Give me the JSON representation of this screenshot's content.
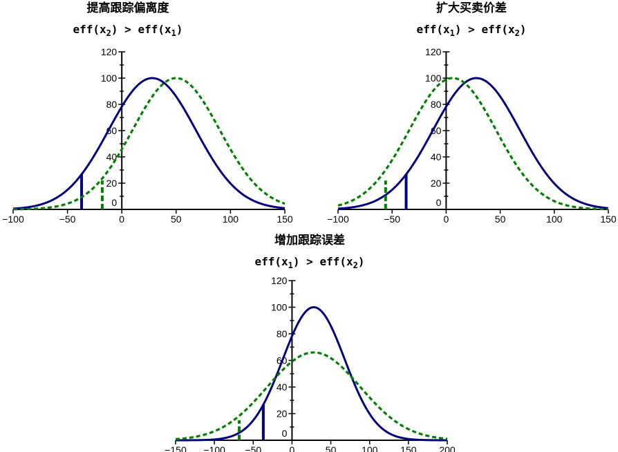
{
  "chart_data": [
    {
      "type": "line",
      "title": "提高跟踪偏离度",
      "subtitle": {
        "left": "eff(x",
        "left_sub": "2",
        "right": "eff(x",
        "right_sub": "1"
      },
      "xlim": [
        -100,
        150
      ],
      "ylim": [
        0,
        120
      ],
      "xticks": [
        -100,
        -50,
        0,
        50,
        100,
        150
      ],
      "xtick_labels": [
        "−100",
        "−50",
        "0",
        "50",
        "100",
        "150"
      ],
      "yticks": [
        0,
        20,
        40,
        60,
        80,
        100,
        120
      ],
      "ytick_labels": [
        "0",
        "20",
        "40",
        "60",
        "80",
        "100",
        "120"
      ],
      "series": [
        {
          "style": "solid",
          "color": "#000080",
          "curve": {
            "peak": 100,
            "mean": 28,
            "sd": 40
          },
          "marker_x": -37,
          "marker_y": 27
        },
        {
          "style": "dashed",
          "color": "#008000",
          "curve": {
            "peak": 100,
            "mean": 50,
            "sd": 40
          },
          "marker_x": -18,
          "marker_y": 22
        }
      ]
    },
    {
      "type": "line",
      "title": "扩大买卖价差",
      "subtitle": {
        "left": "eff(x",
        "left_sub": "1",
        "right": "eff(x",
        "right_sub": "2"
      },
      "xlim": [
        -100,
        150
      ],
      "ylim": [
        0,
        120
      ],
      "xticks": [
        -100,
        -50,
        0,
        50,
        100,
        150
      ],
      "xtick_labels": [
        "−100",
        "−50",
        "0",
        "50",
        "100",
        "150"
      ],
      "yticks": [
        0,
        20,
        40,
        60,
        80,
        100,
        120
      ],
      "ytick_labels": [
        "0",
        "20",
        "40",
        "60",
        "80",
        "100",
        "120"
      ],
      "series": [
        {
          "style": "solid",
          "color": "#000080",
          "curve": {
            "peak": 100,
            "mean": 28,
            "sd": 40
          },
          "marker_x": -37,
          "marker_y": 27
        },
        {
          "style": "dashed",
          "color": "#008000",
          "curve": {
            "peak": 100,
            "mean": 6,
            "sd": 40
          },
          "marker_x": -56,
          "marker_y": 22
        }
      ]
    },
    {
      "type": "line",
      "title": "增加跟踪误差",
      "subtitle": {
        "left": "eff(x",
        "left_sub": "1",
        "right": "eff(x",
        "right_sub": "2"
      },
      "xlim": [
        -150,
        200
      ],
      "ylim": [
        0,
        120
      ],
      "xticks": [
        -150,
        -100,
        -50,
        0,
        50,
        100,
        150,
        200
      ],
      "xtick_labels": [
        "−150",
        "−100",
        "−50",
        "0",
        "50",
        "100",
        "150",
        "200"
      ],
      "yticks": [
        0,
        20,
        40,
        60,
        80,
        100,
        120
      ],
      "ytick_labels": [
        "0",
        "20",
        "40",
        "60",
        "80",
        "100",
        "120"
      ],
      "series": [
        {
          "style": "solid",
          "color": "#000080",
          "curve": {
            "peak": 100,
            "mean": 28,
            "sd": 40
          },
          "marker_x": -37,
          "marker_y": 27
        },
        {
          "style": "dashed",
          "color": "#008000",
          "curve": {
            "peak": 66,
            "mean": 28,
            "sd": 60
          },
          "marker_x": -68,
          "marker_y": 15
        }
      ]
    }
  ],
  "colors": {
    "solid": "#000080",
    "dashed": "#008000",
    "axis": "#000000"
  }
}
